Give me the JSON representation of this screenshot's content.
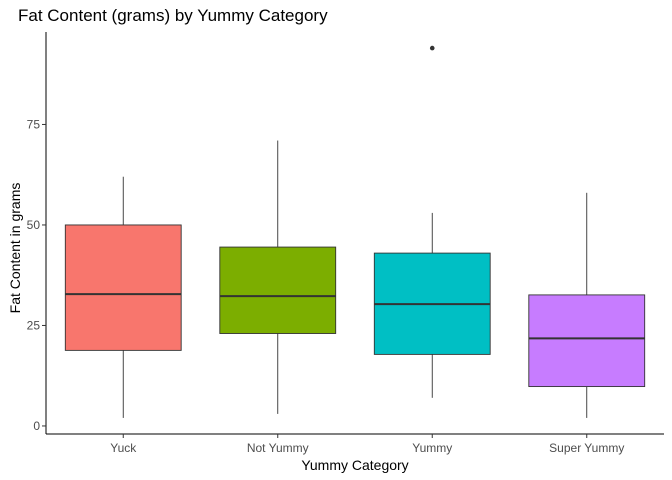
{
  "chart_data": {
    "type": "boxplot",
    "title": "Fat Content (grams) by Yummy Category",
    "xlabel": "Yummy Category",
    "ylabel": "Fat Content in grams",
    "categories": [
      "Yuck",
      "Not Yummy",
      "Yummy",
      "Super Yummy"
    ],
    "yticks": [
      0,
      25,
      50,
      75
    ],
    "ylim": [
      -2,
      98
    ],
    "grid": false,
    "legend": "none",
    "boxes": [
      {
        "category": "Yuck",
        "min": 2,
        "q1": 18.8,
        "median": 32.8,
        "q3": 50,
        "max": 62,
        "outliers": [],
        "color": "#F8766D"
      },
      {
        "category": "Not Yummy",
        "min": 3,
        "q1": 23,
        "median": 32.3,
        "q3": 44.5,
        "max": 71,
        "outliers": [],
        "color": "#7CAE00"
      },
      {
        "category": "Yummy",
        "min": 7,
        "q1": 17.8,
        "median": 30.3,
        "q3": 43,
        "max": 53,
        "outliers": [
          94
        ],
        "color": "#00BFC4"
      },
      {
        "category": "Super Yummy",
        "min": 2,
        "q1": 9.8,
        "median": 21.8,
        "q3": 32.6,
        "max": 58,
        "outliers": [],
        "color": "#C77CFF"
      }
    ]
  }
}
